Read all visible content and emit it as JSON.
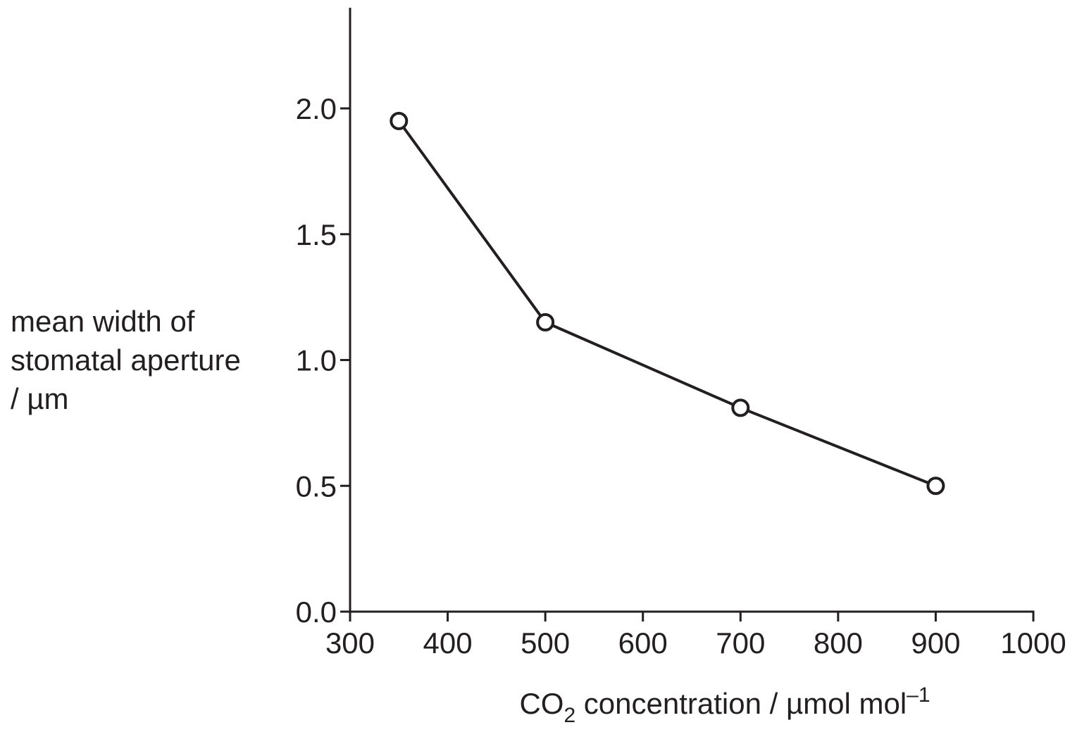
{
  "chart_data": {
    "type": "line",
    "title": "",
    "x": [
      350,
      500,
      700,
      900
    ],
    "series": [
      {
        "values": [
          1.95,
          1.15,
          0.81,
          0.5
        ]
      }
    ],
    "xlim": [
      300,
      1000
    ],
    "ylim": [
      0.0,
      2.4
    ],
    "xticks": [
      300,
      400,
      500,
      600,
      700,
      800,
      900,
      1000
    ],
    "xtick_labels": [
      "300",
      "400",
      "500",
      "600",
      "700",
      "800",
      "900",
      "1000"
    ],
    "yticks": [
      0.0,
      0.5,
      1.0,
      1.5,
      2.0
    ],
    "ytick_labels": [
      "0.0",
      "0.5",
      "1.0",
      "1.5",
      "2.0"
    ],
    "ylabel_lines": [
      "mean width of",
      "stomatal aperture",
      "/ µm"
    ],
    "xlabel": {
      "prefix": "CO",
      "subscript": "2",
      "middle": " concentration / µmol mol",
      "superscript": "–1"
    },
    "marker": "open-circle",
    "grid": false,
    "colors": {
      "ink": "#231f20",
      "marker_fill": "#ffffff"
    }
  }
}
